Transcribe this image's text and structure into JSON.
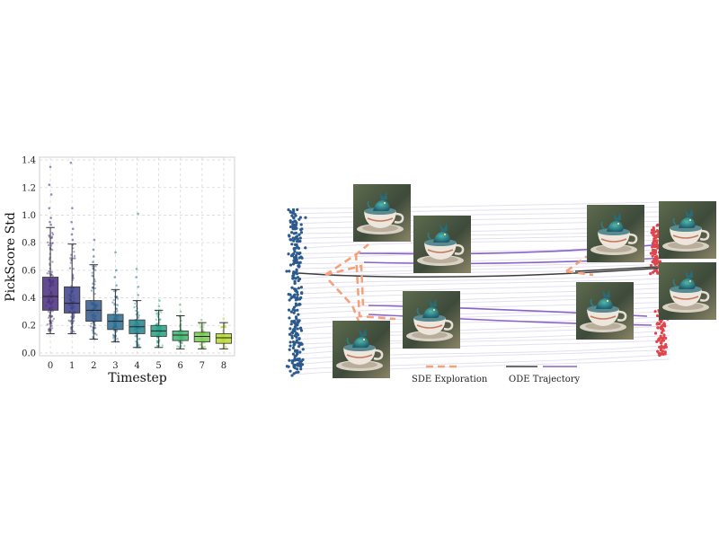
{
  "chart_data": [
    {
      "type": "box",
      "xlabel": "Timestep",
      "ylabel": "PickScore Std",
      "categories": [
        "0",
        "1",
        "2",
        "3",
        "4",
        "5",
        "6",
        "7",
        "8"
      ],
      "y_ticks": [
        "0.0",
        "0.2",
        "0.4",
        "0.6",
        "0.8",
        "1.0",
        "1.2",
        "1.4"
      ],
      "ylim": [
        -0.02,
        1.42
      ],
      "grid": true,
      "boxes": [
        {
          "category": "0",
          "whisker_low": 0.14,
          "q1": 0.31,
          "median": 0.41,
          "q3": 0.55,
          "whisker_high": 0.91,
          "color": "#472c7a",
          "outliers": [
            0.93,
            0.95,
            0.98,
            1.05,
            1.15,
            1.22,
            1.35
          ]
        },
        {
          "category": "1",
          "whisker_low": 0.14,
          "q1": 0.29,
          "median": 0.36,
          "q3": 0.48,
          "whisker_high": 0.79,
          "color": "#3b3f86",
          "outliers": [
            0.82,
            0.86,
            0.9,
            0.95,
            1.05,
            1.38
          ]
        },
        {
          "category": "2",
          "whisker_low": 0.1,
          "q1": 0.23,
          "median": 0.31,
          "q3": 0.38,
          "whisker_high": 0.64,
          "color": "#31578b",
          "outliers": [
            0.66,
            0.7,
            0.75,
            0.82
          ]
        },
        {
          "category": "3",
          "whisker_low": 0.08,
          "q1": 0.17,
          "median": 0.23,
          "q3": 0.28,
          "whisker_high": 0.46,
          "color": "#2a6b8e",
          "outliers": [
            0.49,
            0.55,
            0.6,
            0.73
          ]
        },
        {
          "category": "4",
          "whisker_low": 0.04,
          "q1": 0.14,
          "median": 0.19,
          "q3": 0.24,
          "whisker_high": 0.38,
          "color": "#22838d",
          "outliers": [
            0.42,
            0.48,
            0.55,
            0.61,
            1.01
          ]
        },
        {
          "category": "5",
          "whisker_low": 0.04,
          "q1": 0.12,
          "median": 0.16,
          "q3": 0.2,
          "whisker_high": 0.31,
          "color": "#25a083",
          "outliers": [
            0.34,
            0.38
          ]
        },
        {
          "category": "6",
          "whisker_low": 0.03,
          "q1": 0.09,
          "median": 0.13,
          "q3": 0.16,
          "whisker_high": 0.27,
          "color": "#40b46f",
          "outliers": [
            0.3,
            0.35
          ]
        },
        {
          "category": "7",
          "whisker_low": 0.03,
          "q1": 0.08,
          "median": 0.12,
          "q3": 0.15,
          "whisker_high": 0.22,
          "color": "#79c852",
          "outliers": [
            0.24
          ]
        },
        {
          "category": "8",
          "whisker_low": 0.03,
          "q1": 0.07,
          "median": 0.11,
          "q3": 0.14,
          "whisker_high": 0.22,
          "color": "#b8d734",
          "outliers": [
            0.25
          ]
        }
      ]
    },
    {
      "type": "diagram",
      "legend": [
        {
          "label": "SDE Exploration",
          "style": "dashed",
          "colors": [
            "#f5a27c"
          ]
        },
        {
          "label": "ODE Trajectory",
          "style": "solid",
          "colors": [
            "#3d3d3d",
            "#8a63c9"
          ]
        }
      ],
      "colors": {
        "noise_points": "#2c5a8c",
        "target_points": "#e0454b",
        "trajectories": "#e4dff2",
        "ode_dark": "#3d3d3d",
        "ode_purple": "#8a63c9",
        "sde": "#f5a27c"
      },
      "images": [
        {
          "name": "teacup-dragon-thumb-1",
          "subject": "teacup-dragon"
        },
        {
          "name": "teacup-dragon-thumb-2",
          "subject": "teacup-dragon"
        },
        {
          "name": "teacup-dragon-thumb-3",
          "subject": "teacup-dragon"
        },
        {
          "name": "teacup-dragon-thumb-4",
          "subject": "teacup-dragon"
        },
        {
          "name": "teacup-dragon-thumb-5",
          "subject": "teacup-dragon"
        },
        {
          "name": "teacup-dragon-thumb-6",
          "subject": "teacup-dragon"
        },
        {
          "name": "teacup-dragon-thumb-7",
          "subject": "teacup-dragon"
        },
        {
          "name": "teacup-dragon-thumb-8",
          "subject": "teacup-dragon"
        }
      ]
    }
  ]
}
